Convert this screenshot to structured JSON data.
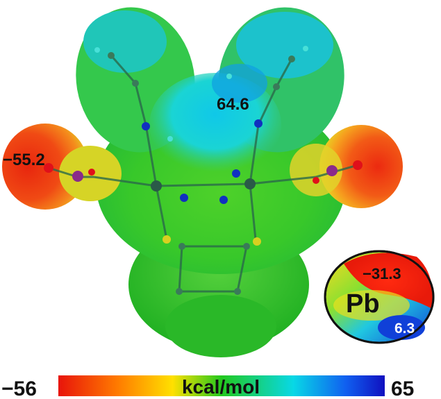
{
  "molecule": {
    "label_left": "−55.2",
    "label_top": "64.6"
  },
  "inset": {
    "element": "Pb",
    "value_min": "−31.3",
    "value_max": "6.3"
  },
  "colorbar": {
    "min_label": "−56",
    "max_label": "65",
    "unit": "kcal/mol",
    "colors": [
      "#e8140a",
      "#ff7a00",
      "#ffe000",
      "#22c81e",
      "#08d8e6",
      "#1060f0",
      "#1010c0"
    ]
  }
}
